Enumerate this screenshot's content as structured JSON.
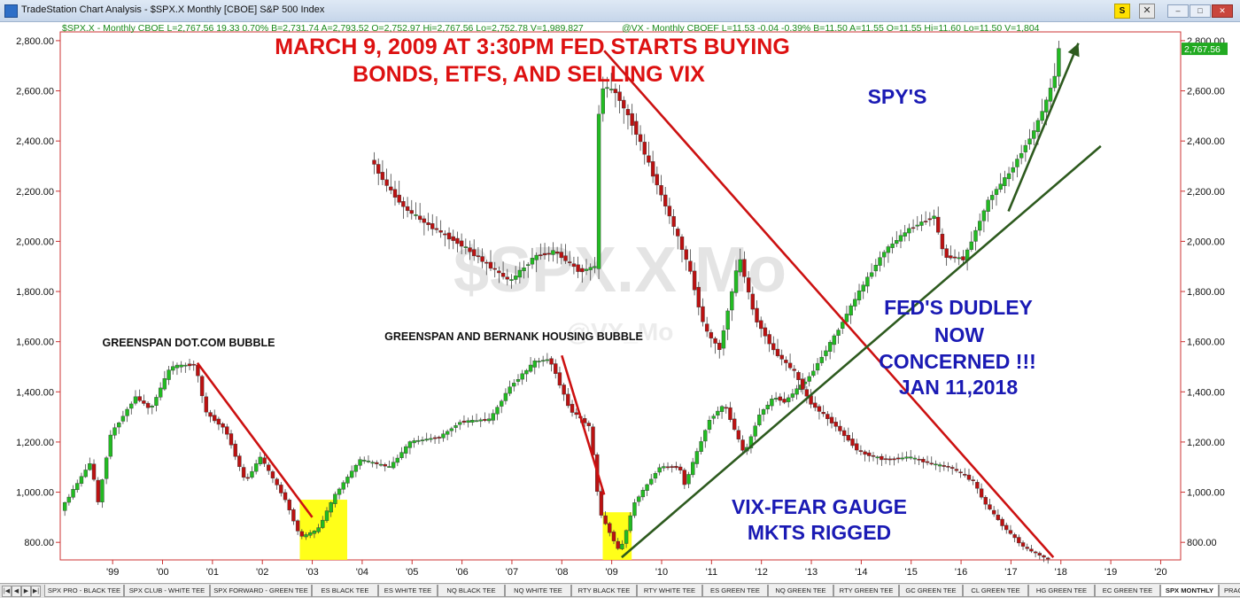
{
  "window": {
    "title": "TradeStation Chart Analysis - $SPX.X Monthly [CBOE] S&P 500 Index",
    "symbol_button": "S",
    "close_symbol": "✕",
    "minimize": "–",
    "maximize": "□",
    "close": "✕"
  },
  "chart_data": {
    "type": "candlestick",
    "y_ticks": [
      "2,800.00",
      "2,600.00",
      "2,400.00",
      "2,200.00",
      "2,000.00",
      "1,800.00",
      "1,600.00",
      "1,400.00",
      "1,200.00",
      "1,000.00",
      "800.00"
    ],
    "y_tick_values": [
      2800,
      2600,
      2400,
      2200,
      2000,
      1800,
      1600,
      1400,
      1200,
      1000,
      800
    ],
    "ylim": [
      730,
      2835
    ],
    "x_ticks": [
      "'99",
      "'00",
      "'01",
      "'02",
      "'03",
      "'04",
      "'05",
      "'06",
      "'07",
      "'08",
      "'09",
      "'10",
      "'11",
      "'12",
      "'13",
      "'14",
      "'15",
      "'16",
      "'17",
      "'18",
      "'19",
      "'20"
    ],
    "x_tick_values": [
      1999,
      2000,
      2001,
      2002,
      2003,
      2004,
      2005,
      2006,
      2007,
      2008,
      2009,
      2010,
      2011,
      2012,
      2013,
      2014,
      2015,
      2016,
      2017,
      2018,
      2019,
      2020
    ],
    "xlim": [
      1997.95,
      2020.4
    ],
    "series": [
      {
        "header": "$SPX.X - Monthly  CBOE  L=2,767.56  19.33  0.70%  B=2,731.74  A=2,793.52  O=2,752.97  Hi=2,767.56  Lo=2,752.78  V=1,989,827",
        "last_value_label": "2,767.56",
        "anchors": [
          [
            1998.0,
            930
          ],
          [
            1998.6,
            1120
          ],
          [
            1998.75,
            960
          ],
          [
            1999.0,
            1230
          ],
          [
            1999.5,
            1380
          ],
          [
            1999.8,
            1330
          ],
          [
            2000.2,
            1500
          ],
          [
            2000.7,
            1510
          ],
          [
            2000.9,
            1320
          ],
          [
            2001.3,
            1250
          ],
          [
            2001.7,
            1040
          ],
          [
            2002.0,
            1140
          ],
          [
            2002.5,
            970
          ],
          [
            2002.8,
            820
          ],
          [
            2003.15,
            850
          ],
          [
            2003.5,
            990
          ],
          [
            2004.0,
            1130
          ],
          [
            2004.6,
            1100
          ],
          [
            2005.0,
            1200
          ],
          [
            2005.6,
            1220
          ],
          [
            2006.0,
            1280
          ],
          [
            2006.6,
            1290
          ],
          [
            2007.0,
            1420
          ],
          [
            2007.5,
            1520
          ],
          [
            2007.8,
            1530
          ],
          [
            2008.2,
            1330
          ],
          [
            2008.6,
            1260
          ],
          [
            2008.8,
            920
          ],
          [
            2009.2,
            760
          ],
          [
            2009.5,
            960
          ],
          [
            2010.0,
            1100
          ],
          [
            2010.4,
            1100
          ],
          [
            2010.5,
            1030
          ],
          [
            2011.0,
            1290
          ],
          [
            2011.3,
            1350
          ],
          [
            2011.7,
            1150
          ],
          [
            2012.0,
            1310
          ],
          [
            2012.3,
            1380
          ],
          [
            2012.5,
            1360
          ],
          [
            2013.0,
            1460
          ],
          [
            2013.5,
            1620
          ],
          [
            2014.0,
            1800
          ],
          [
            2014.5,
            1960
          ],
          [
            2015.0,
            2050
          ],
          [
            2015.5,
            2100
          ],
          [
            2015.7,
            1940
          ],
          [
            2016.1,
            1930
          ],
          [
            2016.6,
            2170
          ],
          [
            2017.0,
            2270
          ],
          [
            2017.5,
            2440
          ],
          [
            2017.75,
            2560
          ],
          [
            2017.95,
            2680
          ],
          [
            2018.0,
            2767.56
          ]
        ]
      },
      {
        "header": "@VX - Monthly  CBOEF  L=11.53  -0.04  -0.39%  B=11.50  A=11.55  O=11.55  Hi=11.60  Lo=11.50  V=1,804",
        "anchors": [
          [
            2004.2,
            2330
          ],
          [
            2004.5,
            2230
          ],
          [
            2004.9,
            2130
          ],
          [
            2005.4,
            2060
          ],
          [
            2006.0,
            1990
          ],
          [
            2006.4,
            1930
          ],
          [
            2006.8,
            1870
          ],
          [
            2007.0,
            1840
          ],
          [
            2007.5,
            1940
          ],
          [
            2007.9,
            1960
          ],
          [
            2008.4,
            1880
          ],
          [
            2008.7,
            1900
          ],
          [
            2008.8,
            2620
          ],
          [
            2009.1,
            2600
          ],
          [
            2009.5,
            2450
          ],
          [
            2009.9,
            2250
          ],
          [
            2010.3,
            2050
          ],
          [
            2010.6,
            1890
          ],
          [
            2010.9,
            1650
          ],
          [
            2011.2,
            1570
          ],
          [
            2011.6,
            1940
          ],
          [
            2011.9,
            1700
          ],
          [
            2012.3,
            1560
          ],
          [
            2012.7,
            1480
          ],
          [
            2013.0,
            1360
          ],
          [
            2013.5,
            1270
          ],
          [
            2014.0,
            1160
          ],
          [
            2014.5,
            1130
          ],
          [
            2015.0,
            1140
          ],
          [
            2015.5,
            1110
          ],
          [
            2015.8,
            1100
          ],
          [
            2016.0,
            1080
          ],
          [
            2016.3,
            1040
          ],
          [
            2016.5,
            960
          ],
          [
            2016.9,
            860
          ],
          [
            2017.3,
            780
          ],
          [
            2017.8,
            730
          ]
        ]
      }
    ],
    "annotations": {
      "headline_line1": "MARCH 9, 2009 AT 3:30PM FED STARTS BUYING",
      "headline_line2": "BONDS, ETFS, AND SELLING VIX",
      "spys": "SPY'S",
      "dudley_line1": "FED'S DUDLEY",
      "dudley_line2": "NOW",
      "dudley_line3": "CONCERNED !!!",
      "dudley_line4": "JAN 11,2018",
      "vix_line1": "VIX-FEAR GAUGE",
      "vix_line2": "MKTS RIGGED",
      "bubble1": "GREENSPAN DOT.COM BUBBLE",
      "bubble2": "GREENSPAN AND BERNANK HOUSING BUBBLE",
      "watermark_main": "$SPX.X Mo",
      "watermark_sub": "@VX_Mo"
    },
    "trendlines": [
      {
        "name": "dotcom-decline",
        "color": "#cc1111",
        "from": [
          2000.7,
          1515
        ],
        "to": [
          2003.0,
          900
        ]
      },
      {
        "name": "housing-decline",
        "color": "#cc1111",
        "from": [
          2008.0,
          1545
        ],
        "to": [
          2008.85,
          990
        ]
      },
      {
        "name": "vix-decline",
        "color": "#cc1111",
        "from": [
          2008.85,
          2760
        ],
        "to": [
          2017.85,
          740
        ]
      },
      {
        "name": "long-uptrend",
        "color": "#2d5a1e",
        "from": [
          2009.2,
          740
        ],
        "to": [
          2018.8,
          2380
        ]
      },
      {
        "name": "recent-uptrend",
        "color": "#2d5a1e",
        "from": [
          2016.95,
          2120
        ],
        "to": [
          2018.35,
          2790
        ]
      }
    ],
    "highlights": [
      {
        "name": "2003-low",
        "color": "#ffff00",
        "x0": 2002.75,
        "x1": 2003.7,
        "y0": 730,
        "y1": 970
      },
      {
        "name": "2009-low",
        "color": "#ffff00",
        "x0": 2008.82,
        "x1": 2009.4,
        "y0": 730,
        "y1": 920
      }
    ],
    "colors": {
      "up": "#22bb22",
      "down": "#bb1111",
      "axis": "#cc3333",
      "headline": "#dd1111",
      "callout": "#1a1ab4",
      "last_value_bg": "#22aa22"
    }
  },
  "tabs": {
    "items": [
      "SPX PRO - BLACK TEE",
      "SPX CLUB - WHITE TEE",
      "SPX FORWARD - GREEN TEE",
      "ES BLACK TEE",
      "ES WHITE TEE",
      "NQ BLACK TEE",
      "NQ WHITE TEE",
      "RTY BLACK TEE",
      "RTY WHITE TEE",
      "ES GREEN TEE",
      "NQ GREEN TEE",
      "RTY GREEN TEE",
      "GC GREEN TEE",
      "CL GREEN TEE",
      "HG GREEN TEE",
      "EC GREEN TEE",
      "SPX MONTHLY",
      "PRACTICE TWO"
    ],
    "active_index": 16,
    "nav": [
      "|◀",
      "◀",
      "▶",
      "▶|"
    ]
  }
}
